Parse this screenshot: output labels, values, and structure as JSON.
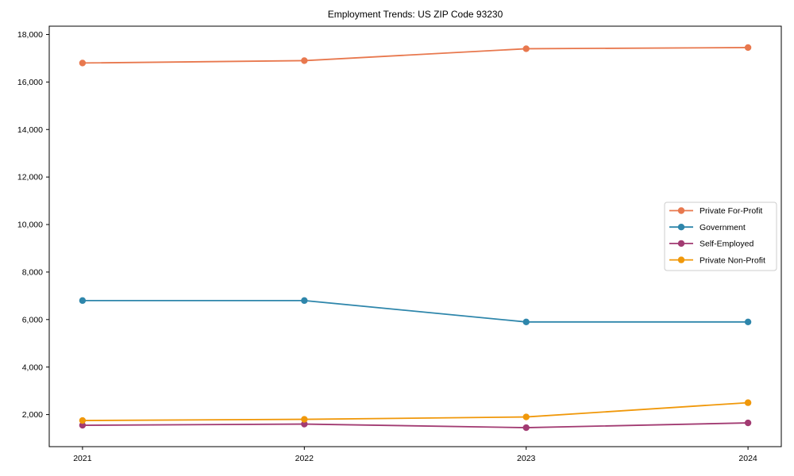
{
  "chart_data": {
    "type": "line",
    "title": "Employment Trends: US ZIP Code 93230",
    "categories": [
      "2021",
      "2022",
      "2023",
      "2024"
    ],
    "series": [
      {
        "name": "Private For-Profit",
        "color": "#e8784e",
        "values": [
          16800,
          16900,
          17400,
          17450
        ]
      },
      {
        "name": "Government",
        "color": "#2e86ab",
        "values": [
          6800,
          6800,
          5900,
          5900
        ]
      },
      {
        "name": "Self-Employed",
        "color": "#a23b72",
        "values": [
          1550,
          1600,
          1450,
          1650
        ]
      },
      {
        "name": "Private Non-Profit",
        "color": "#f0980a",
        "values": [
          1750,
          1800,
          1900,
          2500
        ]
      }
    ],
    "xlabel": "",
    "ylabel": "",
    "ylim": [
      650,
      18350
    ],
    "yticks": [
      2000,
      4000,
      6000,
      8000,
      10000,
      12000,
      14000,
      16000,
      18000
    ],
    "grid": false,
    "legend_position": "right-middle",
    "axis_color": "#000000",
    "background": "#ffffff"
  }
}
